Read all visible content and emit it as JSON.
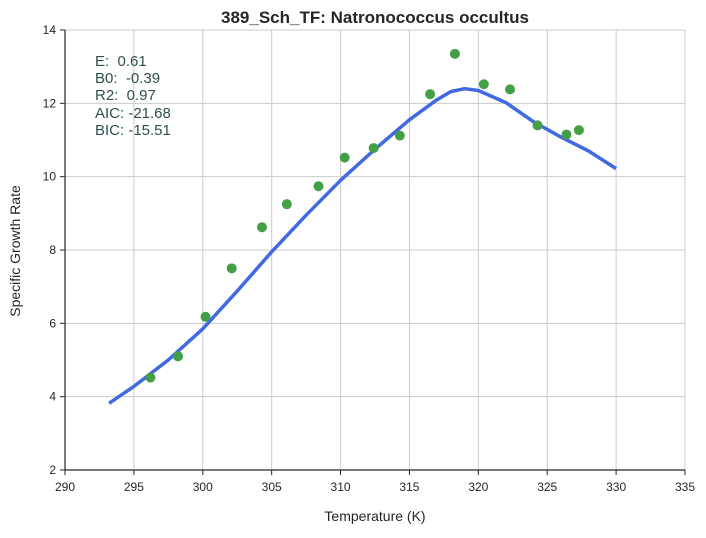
{
  "chart_data": {
    "type": "scatter",
    "title": "389_Sch_TF: Natronococcus occultus",
    "xlabel": "Temperature (K)",
    "ylabel": "Specific Growth Rate",
    "xlim": [
      290,
      335
    ],
    "ylim": [
      2,
      14
    ],
    "xticks": [
      290,
      295,
      300,
      305,
      310,
      315,
      320,
      325,
      330,
      335
    ],
    "yticks": [
      2,
      4,
      6,
      8,
      10,
      12,
      14
    ],
    "xtick_labels": [
      "290",
      "295",
      "300",
      "305",
      "310",
      "315",
      "320",
      "325",
      "330",
      "335"
    ],
    "ytick_labels": [
      "2",
      "4",
      "6",
      "8",
      "10",
      "12",
      "14"
    ],
    "grid": true,
    "annotations": [
      "E:  0.61",
      "B0:  -0.39",
      "R2:  0.97",
      "AIC: -21.68",
      "BIC: -15.51"
    ],
    "series": [
      {
        "kind": "scatter",
        "x": [
          296.2,
          298.2,
          300.2,
          302.1,
          304.3,
          306.1,
          308.4,
          310.3,
          312.4,
          314.3,
          316.5,
          318.3,
          320.4,
          322.3,
          324.3,
          326.4,
          327.3
        ],
        "y": [
          4.52,
          5.1,
          6.18,
          7.5,
          8.62,
          9.25,
          9.74,
          10.52,
          10.78,
          11.12,
          12.25,
          13.35,
          12.52,
          12.38,
          11.4,
          11.15,
          11.27
        ]
      },
      {
        "kind": "line",
        "x": [
          293.2,
          295,
          297.5,
          300,
          302.5,
          305,
          307.5,
          310,
          312.5,
          315,
          317,
          318,
          319,
          320,
          322,
          324,
          326,
          328,
          330
        ],
        "y": [
          3.82,
          4.28,
          5.0,
          5.85,
          6.88,
          7.95,
          8.95,
          9.9,
          10.75,
          11.55,
          12.1,
          12.32,
          12.4,
          12.35,
          12.02,
          11.5,
          11.08,
          10.7,
          10.22
        ]
      }
    ],
    "colors": {
      "points": "#43a047",
      "line": "#4169e1",
      "grid": "#cccccc",
      "axis": "#262626",
      "annotation": "#2f4f4f"
    }
  }
}
